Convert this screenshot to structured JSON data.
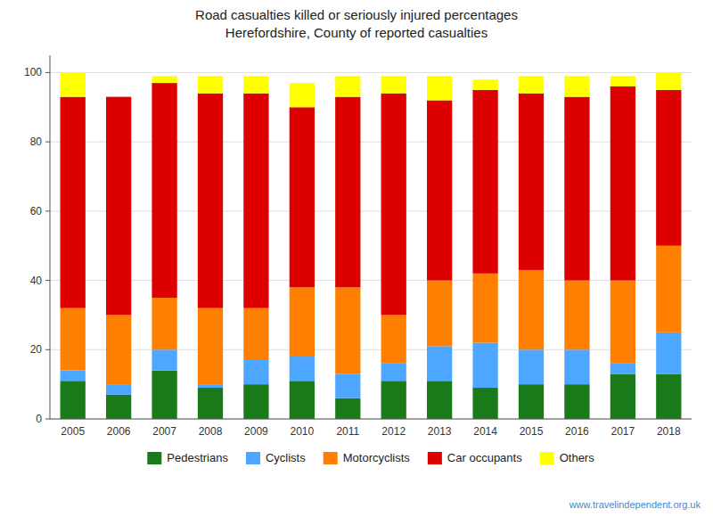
{
  "chart_data": {
    "type": "bar",
    "title": "Road casualties killed or seriously injured percentages",
    "subtitle": "Herefordshire, County of  reported casualties",
    "categories": [
      "2005",
      "2006",
      "2007",
      "2008",
      "2009",
      "2010",
      "2011",
      "2012",
      "2013",
      "2014",
      "2015",
      "2016",
      "2017",
      "2018"
    ],
    "series": [
      {
        "name": "Pedestrians",
        "color": "#1a7a1a",
        "values": [
          11,
          7,
          14,
          9,
          10,
          11,
          6,
          11,
          11,
          9,
          10,
          10,
          13,
          13
        ]
      },
      {
        "name": "Cyclists",
        "color": "#4da6ff",
        "values": [
          3,
          3,
          6,
          1,
          7,
          7,
          7,
          5,
          10,
          13,
          10,
          10,
          3,
          12
        ]
      },
      {
        "name": "Motorcyclists",
        "color": "#ff8000",
        "values": [
          18,
          20,
          15,
          22,
          15,
          20,
          25,
          14,
          19,
          20,
          23,
          20,
          24,
          25
        ]
      },
      {
        "name": "Car occupants",
        "color": "#dd0000",
        "values": [
          61,
          63,
          62,
          62,
          62,
          52,
          55,
          64,
          52,
          53,
          51,
          53,
          56,
          45
        ]
      },
      {
        "name": "Others",
        "color": "#ffff00",
        "values": [
          7,
          0,
          2,
          5,
          5,
          7,
          6,
          5,
          7,
          3,
          5,
          6,
          3,
          5
        ]
      }
    ],
    "stacked": true,
    "ylim": [
      0,
      105
    ],
    "yticks": [
      0,
      20,
      40,
      60,
      80,
      100
    ],
    "grid": true,
    "legend": "bottom",
    "annotations": [
      "www.travelindependent.org.uk"
    ]
  }
}
